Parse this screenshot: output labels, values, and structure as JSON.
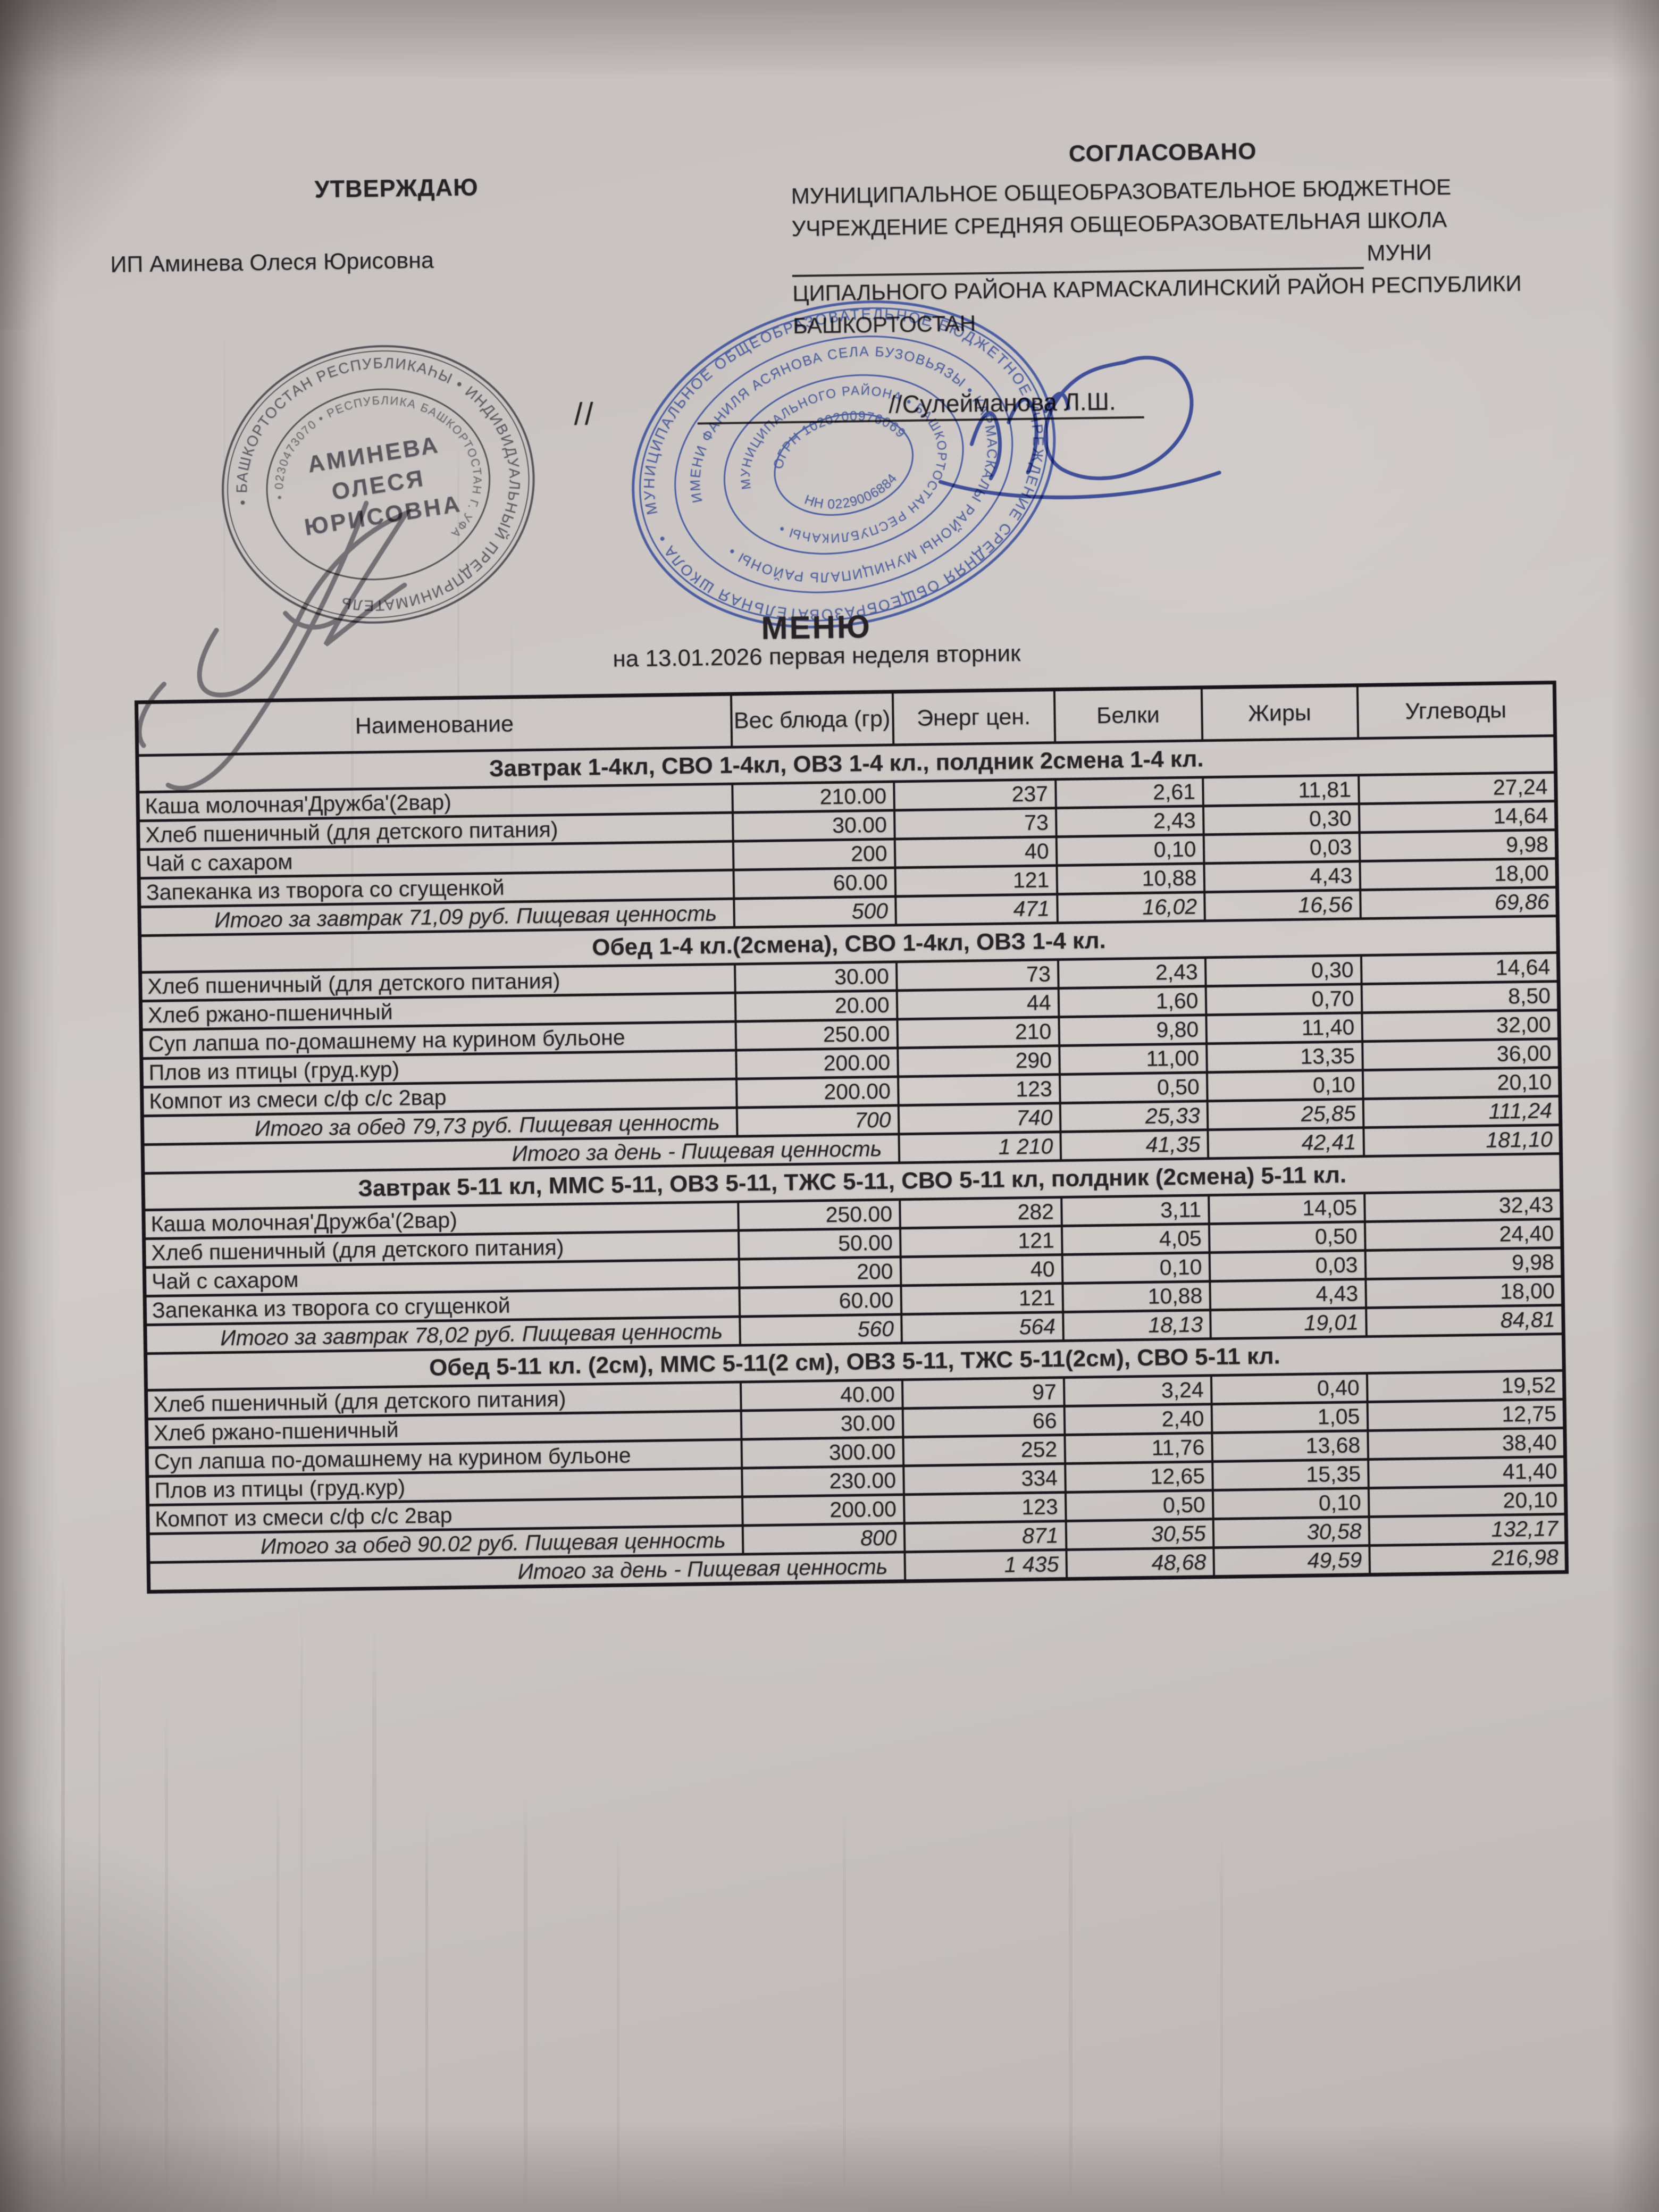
{
  "header": {
    "left": {
      "title": "УТВЕРЖДАЮ",
      "name": "ИП Аминева Олеся Юрисовна",
      "slashes": "//"
    },
    "right": {
      "title": "СОГЛАСОВАНО",
      "line1": "МУНИЦИПАЛЬНОЕ ОБЩЕОБРАЗОВАТЕЛЬНОЕ БЮДЖЕТНОЕ",
      "line2": "УЧРЕЖДЕНИЕ СРЕДНЯЯ ОБЩЕОБРАЗОВАТЕЛЬНАЯ ШКОЛА",
      "line3_suffix": "МУНИ",
      "line4": "ЦИПАЛЬНОГО РАЙОНА КАРМАСКАЛИНСКИЙ РАЙОН РЕСПУБЛИКИ",
      "line5": "БАШКОРТОСТАН",
      "signature": "//Сулейманова Л.Ш."
    }
  },
  "title": {
    "menu": "МЕНЮ",
    "date_line": "на 13.01.2026 первая неделя вторник"
  },
  "stamps": {
    "oval": {
      "center_line1": "АМИНЕВА",
      "center_line2": "ОЛЕСЯ",
      "center_line3": "ЮРИСОВНА",
      "ring_outer": "• БАШКОРТОСТАН РЕСПУБЛИКАҺЫ • ИНДИВИДУАЛЬНЫЙ ПРЕДПРИНИМАТЕЛЬ",
      "ring_inner": "• 0230473070 • РЕСПУБЛИКА БАШКОРТОСТАН Г. УФА"
    },
    "round": {
      "ring1": "МУНИЦИПАЛЬНОЕ ОБЩЕОБРАЗОВАТЕЛЬНОЕ БЮДЖЕТНОЕ УЧРЕЖДЕНИЕ СРЕДНЯЯ ОБЩЕОБРАЗОВАТЕЛЬНАЯ ШКОЛА •",
      "ring2": "ИМЕНИ ФАНИЛЯ АСЯНОВА СЕЛА БУЗОВЬЯЗЫ • КАРМАСКАЛЫ РАЙОНЫ МУНИЦИПАЛЬ РАЙОНЫ •",
      "ring3": "МУНИЦИПАЛЬНОГО РАЙОНА • БАШКОРТОСТАН РЕСПУБЛИКАҺЫ •",
      "center_top": "ОГРН 1020200976069",
      "center_bottom": "НН 0229006884"
    }
  },
  "colors": {
    "paper": "#ccc7c5",
    "ink": "#262226",
    "stamp_blue": "#3a4f9b",
    "stamp_gray": "#545056",
    "table_border": "#1a171c"
  },
  "table": {
    "columns": [
      "Наименование",
      "Вес блюда (гр)",
      "Энерг цен.",
      "Белки",
      "Жиры",
      "Углеводы"
    ],
    "sections": [
      {
        "header": "Завтрак   1-4кл, СВО 1-4кл, ОВЗ 1-4 кл., полдник 2смена 1-4 кл.",
        "rows": [
          {
            "type": "item",
            "label": "Каша молочная'Дружба'(2вар)",
            "values": [
              "210.00",
              "237",
              "2,61",
              "11,81",
              "27,24"
            ]
          },
          {
            "type": "item",
            "label": "Хлеб пшеничный (для детского питания)",
            "values": [
              "30.00",
              "73",
              "2,43",
              "0,30",
              "14,64"
            ]
          },
          {
            "type": "item",
            "label": "Чай с сахаром",
            "values": [
              "200",
              "40",
              "0,10",
              "0,03",
              "9,98"
            ]
          },
          {
            "type": "item",
            "label": "Запеканка из творога со сгущенкой",
            "values": [
              "60.00",
              "121",
              "10,88",
              "4,43",
              "18,00"
            ]
          },
          {
            "type": "total",
            "label": "Итого за завтрак 71,09 руб.  Пищевая ценность",
            "values": [
              "500",
              "471",
              "16,02",
              "16,56",
              "69,86"
            ]
          }
        ]
      },
      {
        "header": "Обед  1-4 кл.(2смена),  СВО 1-4кл, ОВЗ 1-4 кл.",
        "rows": [
          {
            "type": "item",
            "label": "Хлеб пшеничный (для детского питания)",
            "values": [
              "30.00",
              "73",
              "2,43",
              "0,30",
              "14,64"
            ]
          },
          {
            "type": "item",
            "label": "Хлеб ржано-пшеничный",
            "values": [
              "20.00",
              "44",
              "1,60",
              "0,70",
              "8,50"
            ]
          },
          {
            "type": "item",
            "label": "Суп лапша по-домашнему на курином бульоне",
            "values": [
              "250.00",
              "210",
              "9,80",
              "11,40",
              "32,00"
            ]
          },
          {
            "type": "item",
            "label": "Плов из птицы (груд.кур)",
            "values": [
              "200.00",
              "290",
              "11,00",
              "13,35",
              "36,00"
            ]
          },
          {
            "type": "item",
            "label": "Компот из смеси с/ф с/с 2вар",
            "values": [
              "200.00",
              "123",
              "0,50",
              "0,10",
              "20,10"
            ]
          },
          {
            "type": "total",
            "label": "Итого за обед 79,73 руб. Пищевая ценность",
            "values": [
              "700",
              "740",
              "25,33",
              "25,85",
              "111,24"
            ]
          },
          {
            "type": "day_total",
            "label": "Итого за день - Пищевая ценность",
            "values": [
              "1 210",
              "41,35",
              "42,41",
              "181,10"
            ]
          }
        ]
      },
      {
        "header": "Завтрак 5-11 кл, ММС 5-11, ОВЗ 5-11, ТЖС 5-11, СВО 5-11 кл, полдник (2смена) 5-11 кл.",
        "rows": [
          {
            "type": "item",
            "label": "Каша молочная'Дружба'(2вар)",
            "values": [
              "250.00",
              "282",
              "3,11",
              "14,05",
              "32,43"
            ]
          },
          {
            "type": "item",
            "label": "Хлеб пшеничный (для детского питания)",
            "values": [
              "50.00",
              "121",
              "4,05",
              "0,50",
              "24,40"
            ]
          },
          {
            "type": "item",
            "label": "Чай с сахаром",
            "values": [
              "200",
              "40",
              "0,10",
              "0,03",
              "9,98"
            ]
          },
          {
            "type": "item",
            "label": "Запеканка из творога со сгущенкой",
            "values": [
              "60.00",
              "121",
              "10,88",
              "4,43",
              "18,00"
            ]
          },
          {
            "type": "total",
            "label": "Итого за завтрак 78,02 руб. Пищевая ценность",
            "values": [
              "560",
              "564",
              "18,13",
              "19,01",
              "84,81"
            ]
          }
        ]
      },
      {
        "header": "Обед  5-11 кл. (2см), ММС 5-11(2 см), ОВЗ 5-11, ТЖС 5-11(2см), СВО 5-11 кл.",
        "rows": [
          {
            "type": "item",
            "label": "Хлеб пшеничный (для детского питания)",
            "values": [
              "40.00",
              "97",
              "3,24",
              "0,40",
              "19,52"
            ]
          },
          {
            "type": "item",
            "label": "Хлеб ржано-пшеничный",
            "values": [
              "30.00",
              "66",
              "2,40",
              "1,05",
              "12,75"
            ]
          },
          {
            "type": "item",
            "label": "Суп лапша по-домашнему на курином бульоне",
            "values": [
              "300.00",
              "252",
              "11,76",
              "13,68",
              "38,40"
            ]
          },
          {
            "type": "item",
            "label": "Плов из птицы (груд.кур)",
            "values": [
              "230.00",
              "334",
              "12,65",
              "15,35",
              "41,40"
            ]
          },
          {
            "type": "item",
            "label": "Компот из смеси с/ф с/с 2вар",
            "values": [
              "200.00",
              "123",
              "0,50",
              "0,10",
              "20,10"
            ]
          },
          {
            "type": "total",
            "label": "Итого за обед 90.02 руб. Пищевая ценность",
            "values": [
              "800",
              "871",
              "30,55",
              "30,58",
              "132,17"
            ]
          },
          {
            "type": "day_total",
            "label": "Итого за день - Пищевая ценность",
            "values": [
              "1 435",
              "48,68",
              "49,59",
              "216,98"
            ]
          }
        ]
      }
    ]
  }
}
